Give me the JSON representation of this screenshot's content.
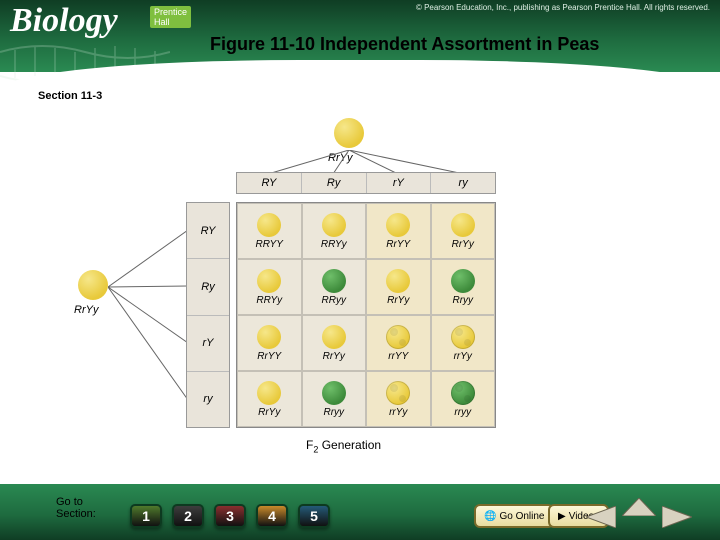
{
  "header": {
    "logo_main": "Biology",
    "logo_sub": "Prentice Hall",
    "copyright": "© Pearson Education, Inc., publishing as Pearson Prentice Hall. All rights reserved.",
    "figure_title": "Figure 11-10 Independent Assortment in Peas"
  },
  "section_label": "Section 11-3",
  "colors": {
    "header_gradient": [
      "#0f3d24",
      "#1e6b3f",
      "#2a8a52"
    ],
    "footer_gradient": [
      "#2a8a52",
      "#1e6b3f",
      "#0f3d24"
    ],
    "gamete_bar_bg": "#e9e4da",
    "pea_yellow": "#e8c93a",
    "pea_yellow_light": "#f6e78a",
    "pea_green": "#3d8a3a",
    "pea_green_light": "#6fbf6a",
    "cell_bg_a": "#ece7da",
    "cell_bg_b": "#f1e7c8",
    "btn_colors": [
      "#4f7a2c",
      "#3d3d3d",
      "#8a2f2f",
      "#c98a2b",
      "#245a78"
    ]
  },
  "parents": {
    "top": {
      "genotype": "RrYy",
      "color": "yellow",
      "texture": "round"
    },
    "left": {
      "genotype": "RrYy",
      "color": "yellow",
      "texture": "round"
    }
  },
  "gametes": [
    "RY",
    "Ry",
    "rY",
    "ry"
  ],
  "punnett": {
    "rows": [
      [
        {
          "g": "RRYY",
          "color": "yellow",
          "tex": "round"
        },
        {
          "g": "RRYy",
          "color": "yellow",
          "tex": "round"
        },
        {
          "g": "RrYY",
          "color": "yellow",
          "tex": "round"
        },
        {
          "g": "RrYy",
          "color": "yellow",
          "tex": "round"
        }
      ],
      [
        {
          "g": "RRYy",
          "color": "yellow",
          "tex": "round"
        },
        {
          "g": "RRyy",
          "color": "green",
          "tex": "round"
        },
        {
          "g": "RrYy",
          "color": "yellow",
          "tex": "round"
        },
        {
          "g": "Rryy",
          "color": "green",
          "tex": "round"
        }
      ],
      [
        {
          "g": "RrYY",
          "color": "yellow",
          "tex": "round"
        },
        {
          "g": "RrYy",
          "color": "yellow",
          "tex": "round"
        },
        {
          "g": "rrYY",
          "color": "yellow",
          "tex": "wrinkled"
        },
        {
          "g": "rrYy",
          "color": "yellow",
          "tex": "wrinkled"
        }
      ],
      [
        {
          "g": "RrYy",
          "color": "yellow",
          "tex": "round"
        },
        {
          "g": "Rryy",
          "color": "green",
          "tex": "round"
        },
        {
          "g": "rrYy",
          "color": "yellow",
          "tex": "wrinkled"
        },
        {
          "g": "rryy",
          "color": "green",
          "tex": "wrinkled"
        }
      ]
    ],
    "cell_shade_cols": [
      0,
      0,
      1,
      1
    ],
    "f2_label": "F₂ Generation"
  },
  "footer": {
    "goto": "Go to\nSection:",
    "buttons": [
      "1",
      "2",
      "3",
      "4",
      "5"
    ],
    "online_btn": "Go Online",
    "videos_btn": "Videos"
  }
}
